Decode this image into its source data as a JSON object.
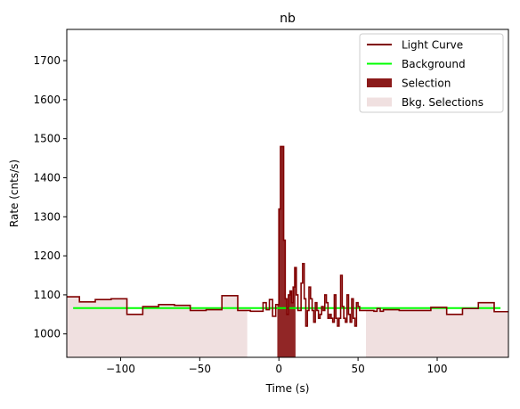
{
  "chart_data": {
    "type": "line",
    "title": "nb",
    "xlabel": "Time (s)",
    "ylabel": "Rate (cnts/s)",
    "xlim": [
      -134,
      145
    ],
    "ylim": [
      940,
      1780
    ],
    "xticks": [
      -100,
      -50,
      0,
      50,
      100
    ],
    "yticks": [
      1000,
      1100,
      1200,
      1300,
      1400,
      1500,
      1600,
      1700
    ],
    "grid": false,
    "legend_position": "top-right",
    "legend": [
      {
        "label": "Light Curve",
        "kind": "line",
        "color": "#800000"
      },
      {
        "label": "Background",
        "kind": "line",
        "color": "#00ff00"
      },
      {
        "label": "Selection",
        "kind": "patch",
        "color": "#8b1a1a"
      },
      {
        "label": "Bkg. Selections",
        "kind": "patch",
        "color": "#f0e0e0"
      }
    ],
    "light_curve": {
      "name": "Light Curve",
      "color": "#800000",
      "edges": [
        -134,
        -126,
        -116,
        -106,
        -96,
        -86,
        -76,
        -66,
        -56,
        -46,
        -36,
        -26,
        -18,
        -10,
        -8,
        -6,
        -4,
        -2,
        0,
        1,
        2,
        3,
        4,
        5,
        6,
        7,
        8,
        9,
        10,
        11,
        12,
        13,
        14,
        15,
        16,
        17,
        18,
        19,
        20,
        21,
        22,
        23,
        24,
        25,
        26,
        27,
        28,
        29,
        30,
        31,
        32,
        33,
        34,
        35,
        36,
        37,
        38,
        39,
        40,
        41,
        42,
        43,
        44,
        45,
        46,
        47,
        48,
        49,
        50,
        51,
        52,
        53,
        54,
        55,
        56,
        58,
        60,
        62,
        64,
        66,
        76,
        86,
        96,
        106,
        116,
        126,
        136,
        145
      ],
      "values": [
        1095,
        1082,
        1088,
        1090,
        1050,
        1070,
        1075,
        1073,
        1060,
        1062,
        1098,
        1060,
        1058,
        1080,
        1062,
        1088,
        1045,
        1075,
        1320,
        1480,
        1480,
        1240,
        1090,
        1050,
        1100,
        1110,
        1080,
        1120,
        1170,
        1100,
        1060,
        1060,
        1130,
        1180,
        1090,
        1020,
        1060,
        1120,
        1090,
        1060,
        1030,
        1080,
        1060,
        1040,
        1050,
        1070,
        1060,
        1100,
        1080,
        1040,
        1050,
        1040,
        1030,
        1100,
        1040,
        1020,
        1040,
        1150,
        1070,
        1040,
        1030,
        1100,
        1050,
        1030,
        1090,
        1040,
        1020,
        1080,
        1070,
        1060,
        1060,
        1060,
        1060,
        1060,
        1060,
        1060,
        1058,
        1065,
        1058,
        1062,
        1060,
        1060,
        1068,
        1050,
        1065,
        1080,
        1057
      ]
    },
    "background": {
      "name": "Background",
      "color": "#00ff00",
      "x": [
        -130,
        140
      ],
      "y": [
        1066,
        1066
      ]
    },
    "selection": {
      "name": "Selection",
      "color": "#8b1a1a",
      "x": [
        -1,
        10.5
      ]
    },
    "bkg_selections": {
      "name": "Bkg. Selections",
      "color": "#f0e0e0",
      "ranges": [
        [
          -134,
          -20
        ],
        [
          55,
          145
        ]
      ]
    }
  }
}
